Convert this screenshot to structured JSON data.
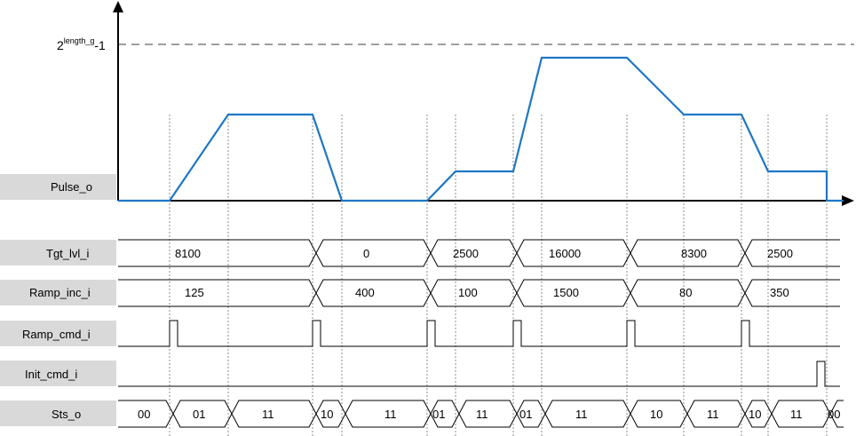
{
  "max_label": {
    "base": "2",
    "exponent": "length_g",
    "suffix": "-1"
  },
  "signals": {
    "pulse": "Pulse_o",
    "tgt": "Tgt_lvl_i",
    "ramp_inc": "Ramp_inc_i",
    "ramp_cmd": "Ramp_cmd_i",
    "init_cmd": "Init_cmd_i",
    "sts": "Sts_o"
  },
  "tgt_values": [
    "8100",
    "0",
    "2500",
    "16000",
    "8300",
    "2500"
  ],
  "ramp_inc_values": [
    "125",
    "400",
    "100",
    "1500",
    "80",
    "350"
  ],
  "sts_values": [
    "00",
    "01",
    "11",
    "10",
    "11",
    "01",
    "11",
    "01",
    "11",
    "10",
    "11",
    "10",
    "11",
    "00"
  ]
}
